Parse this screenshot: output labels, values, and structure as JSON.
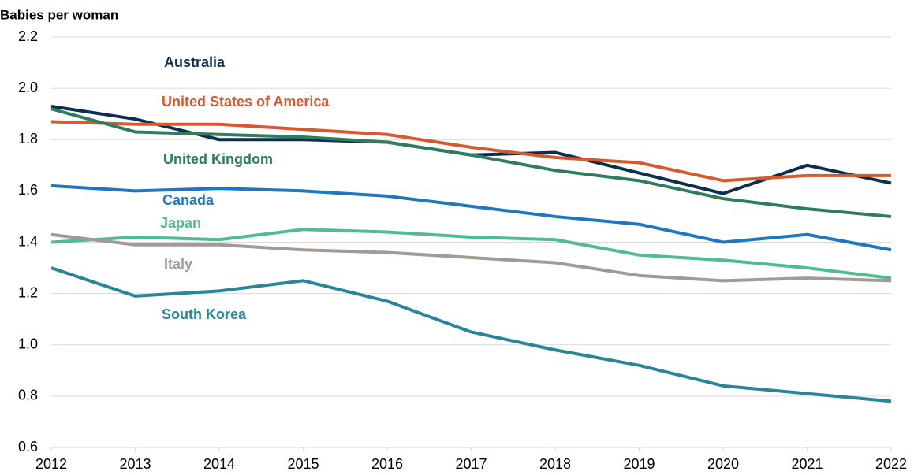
{
  "chart_data": {
    "type": "line",
    "y_label": "Babies per woman",
    "x": [
      2012,
      2013,
      2014,
      2015,
      2016,
      2017,
      2018,
      2019,
      2020,
      2021,
      2022
    ],
    "xlim": [
      2012,
      2022
    ],
    "xticks": [
      2012,
      2013,
      2014,
      2015,
      2016,
      2017,
      2018,
      2019,
      2020,
      2021,
      2022
    ],
    "ylim": [
      0.6,
      2.2
    ],
    "yticks": [
      0.6,
      0.8,
      {
        "value": 1,
        "label": "1.0"
      },
      1.2,
      1.4,
      1.6,
      1.8,
      {
        "value": 2,
        "label": "2.0"
      },
      2.2
    ],
    "grid": true,
    "series": [
      {
        "name": "Australia",
        "color": "#0d2f4f",
        "values": [
          1.93,
          1.88,
          1.8,
          1.8,
          1.79,
          1.74,
          1.75,
          1.67,
          1.59,
          1.7,
          1.63
        ]
      },
      {
        "name": "United States of America",
        "color": "#d65a2e",
        "values": [
          1.87,
          1.86,
          1.86,
          1.84,
          1.82,
          1.77,
          1.73,
          1.71,
          1.64,
          1.66,
          1.66
        ]
      },
      {
        "name": "United Kingdom",
        "color": "#2f7d5c",
        "values": [
          1.92,
          1.83,
          1.82,
          1.81,
          1.79,
          1.74,
          1.68,
          1.64,
          1.57,
          1.53,
          1.5
        ]
      },
      {
        "name": "Canada",
        "color": "#1f77c0",
        "values": [
          1.62,
          1.6,
          1.61,
          1.6,
          1.58,
          1.54,
          1.5,
          1.47,
          1.4,
          1.43,
          1.37
        ]
      },
      {
        "name": "Japan",
        "color": "#4cbf8c",
        "values": [
          1.4,
          1.42,
          1.41,
          1.45,
          1.44,
          1.42,
          1.41,
          1.35,
          1.33,
          1.3,
          1.26
        ]
      },
      {
        "name": "Italy",
        "color": "#a39a96",
        "values": [
          1.43,
          1.39,
          1.39,
          1.37,
          1.36,
          1.34,
          1.32,
          1.27,
          1.25,
          1.26,
          1.25
        ]
      },
      {
        "name": "South Korea",
        "color": "#2a8599",
        "values": [
          1.3,
          1.19,
          1.21,
          1.25,
          1.17,
          1.05,
          0.98,
          0.92,
          0.84,
          0.81,
          0.78
        ]
      }
    ]
  }
}
